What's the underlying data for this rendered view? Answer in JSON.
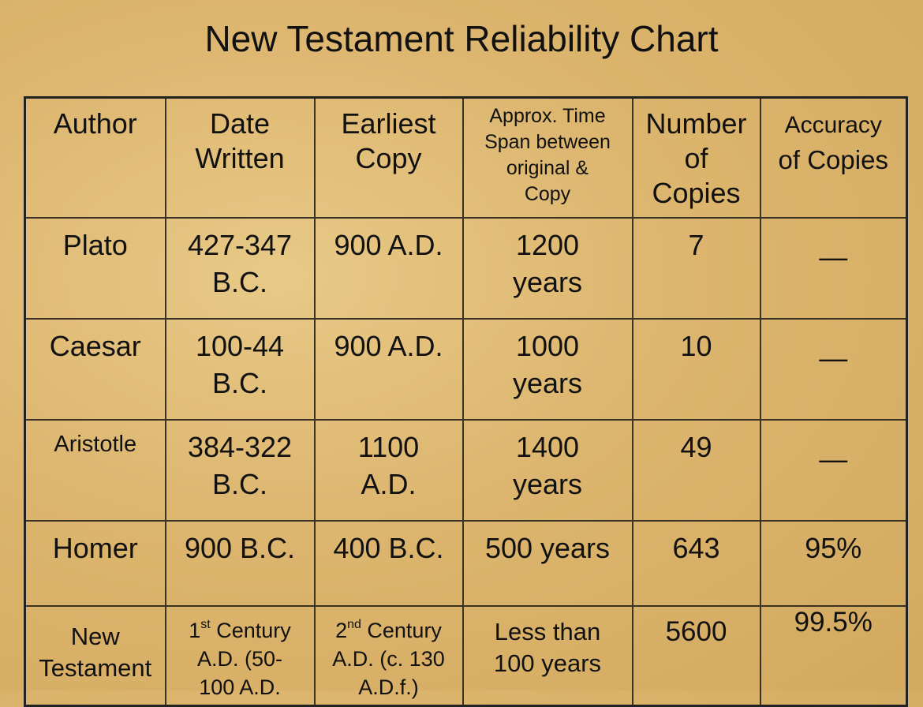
{
  "title": "New Testament Reliability Chart",
  "table": {
    "header": [
      [
        "Author"
      ],
      [
        "Date",
        "Written"
      ],
      [
        "Earliest",
        "Copy"
      ],
      [
        "Approx. Time",
        "Span between",
        "original &",
        "Copy"
      ],
      [
        "Number",
        "of",
        "Copies"
      ],
      [
        "Accuracy",
        "of Copies"
      ]
    ],
    "rows": [
      [
        [
          "Plato"
        ],
        [
          "427-347",
          "B.C."
        ],
        [
          "900 A.D."
        ],
        [
          "1200",
          "years"
        ],
        [
          "7"
        ],
        [
          "—"
        ]
      ],
      [
        [
          "Caesar"
        ],
        [
          "100-44",
          "B.C."
        ],
        [
          "900 A.D."
        ],
        [
          "1000",
          "years"
        ],
        [
          "10"
        ],
        [
          "—"
        ]
      ],
      [
        [
          "Aristotle"
        ],
        [
          "384-322",
          "B.C."
        ],
        [
          "1100",
          "A.D."
        ],
        [
          "1400",
          "years"
        ],
        [
          "49"
        ],
        [
          "—"
        ]
      ],
      [
        [
          "Homer"
        ],
        [
          "900 B.C."
        ],
        [
          "400 B.C."
        ],
        [
          "500 years"
        ],
        [
          "643"
        ],
        [
          "95%"
        ]
      ],
      [
        [
          "New",
          "Testament"
        ],
        [
          {
            "text": "1",
            "sup": "st",
            "rest": " Century"
          },
          "A.D. (50-",
          "100 A.D."
        ],
        [
          {
            "text": "2",
            "sup": "nd",
            "rest": " Century"
          },
          "A.D. (c. 130",
          "A.D.f.)"
        ],
        [
          "Less than",
          "100 years"
        ],
        [
          "5600"
        ],
        [
          "99.5%"
        ]
      ]
    ]
  }
}
